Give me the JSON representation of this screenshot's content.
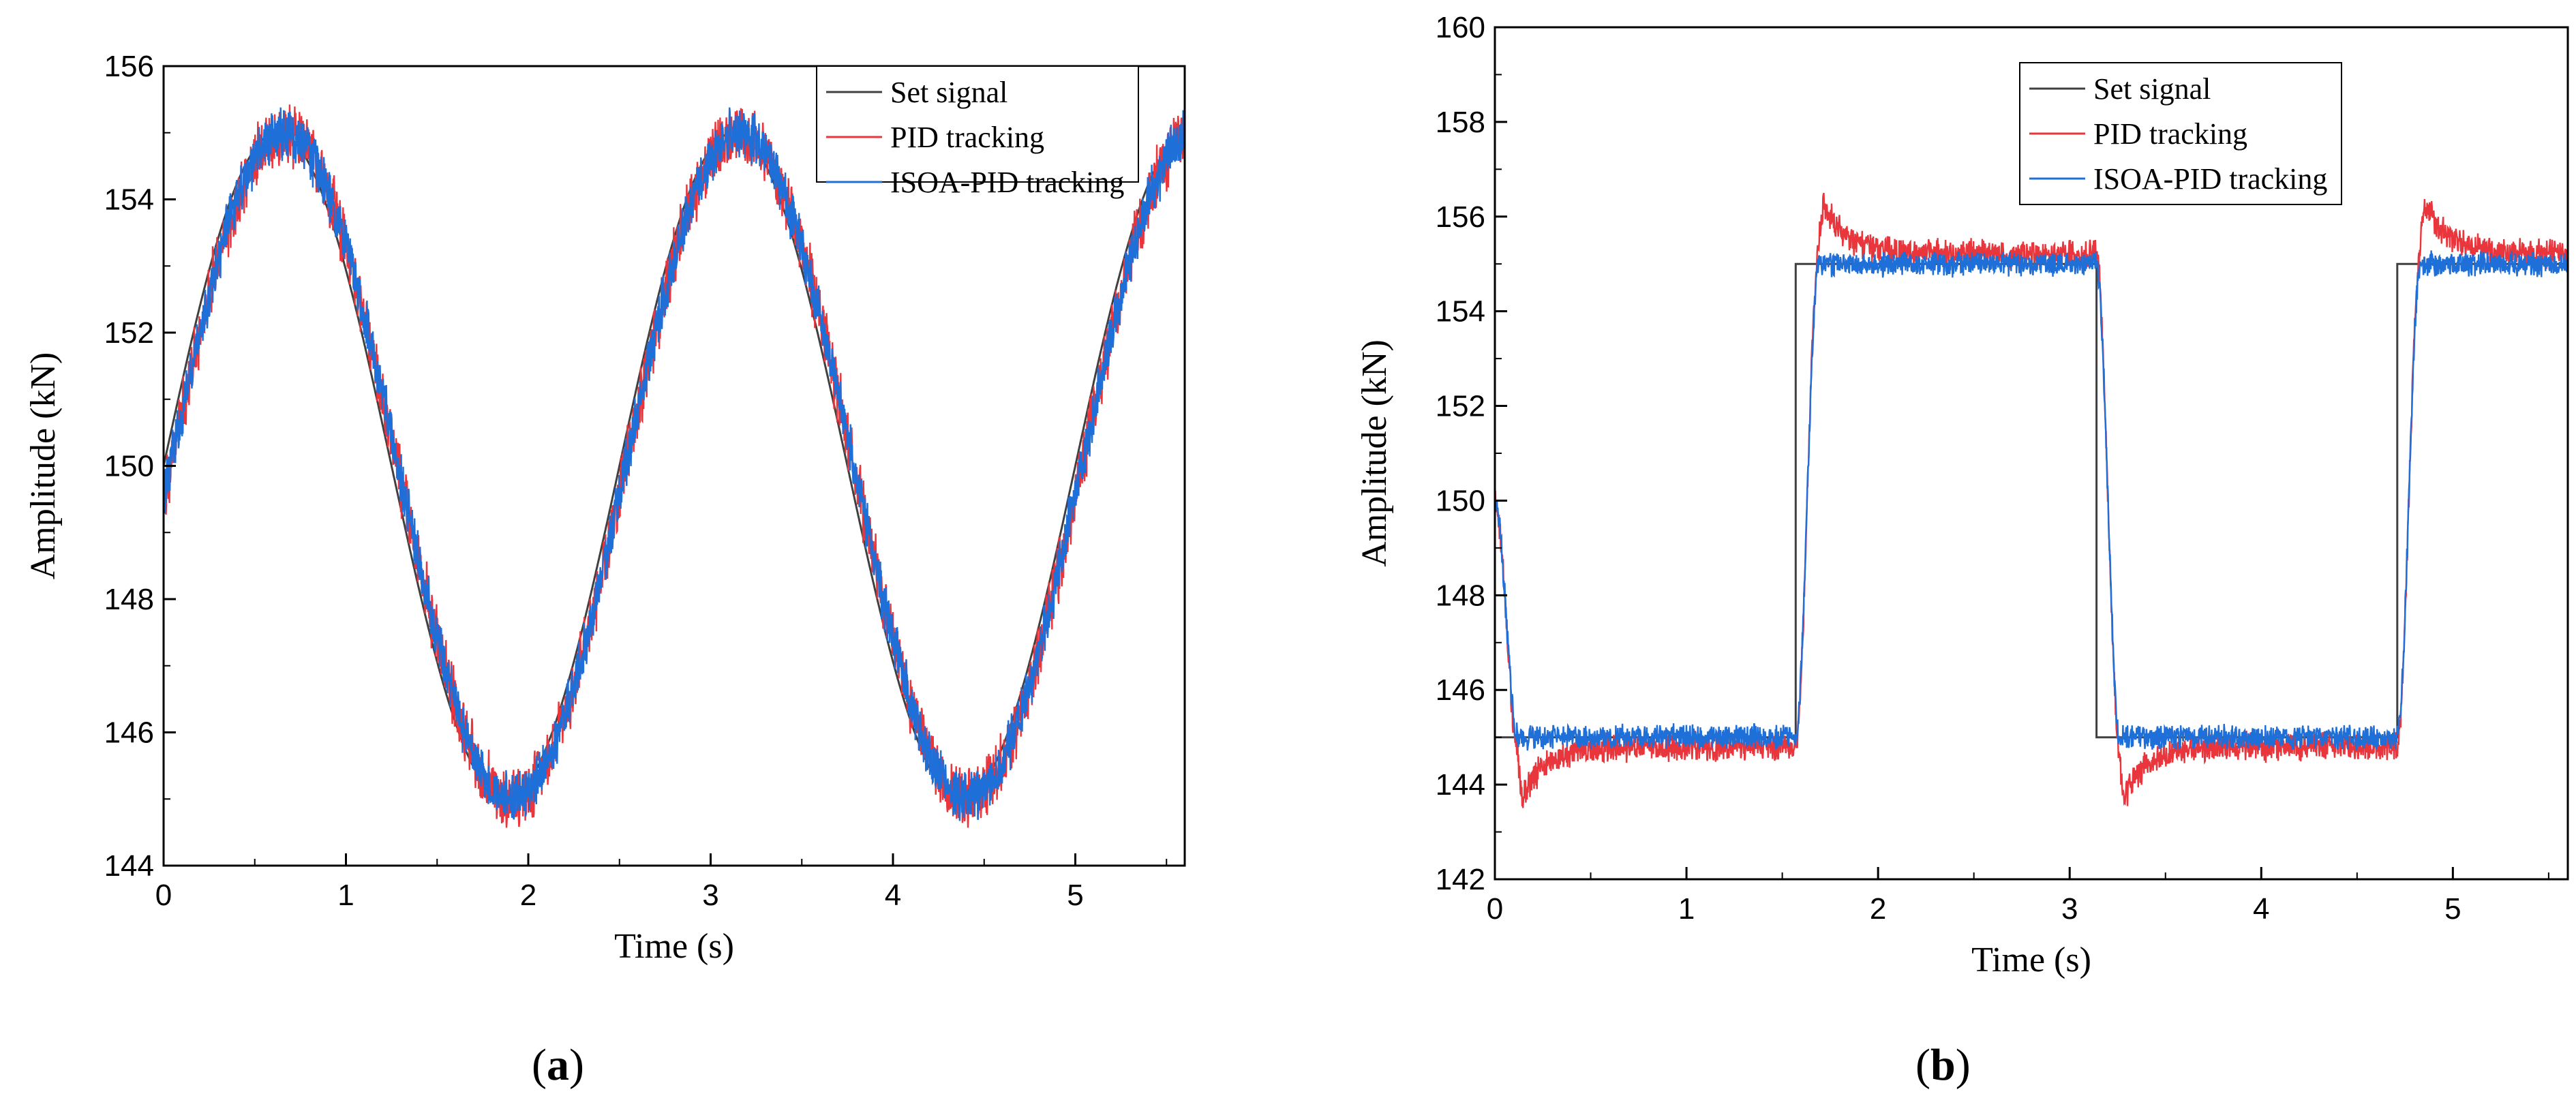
{
  "chart_data": [
    {
      "type": "line",
      "panel_label": "a",
      "title": "",
      "xlabel": "Time (s)",
      "ylabel": "Amplitude (kN)",
      "xlim": [
        0,
        5.6
      ],
      "ylim": [
        144,
        156
      ],
      "x_ticks": [
        0,
        1,
        2,
        3,
        4,
        5
      ],
      "y_ticks": [
        144,
        146,
        148,
        150,
        152,
        154,
        156
      ],
      "legend_position": "top-right",
      "series": [
        {
          "name": "Set signal",
          "color": "#404040",
          "model": {
            "kind": "sine",
            "offset": 150,
            "amplitude": 5,
            "period": 2.5,
            "phase_deg": 0
          },
          "noise": 0
        },
        {
          "name": "PID tracking",
          "color": "#e8363c",
          "model": {
            "kind": "sine",
            "offset": 150,
            "amplitude": 5,
            "period": 2.5,
            "phase_deg": -5
          },
          "noise": 0.55
        },
        {
          "name": "ISOA-PID tracking",
          "color": "#1f6fd8",
          "model": {
            "kind": "sine",
            "offset": 150,
            "amplitude": 5,
            "period": 2.5,
            "phase_deg": -5
          },
          "noise": 0.45
        }
      ]
    },
    {
      "type": "line",
      "panel_label": "b",
      "title": "",
      "xlabel": "Time (s)",
      "ylabel": "Amplitude (kN)",
      "xlim": [
        0,
        5.6
      ],
      "ylim": [
        142,
        160
      ],
      "x_ticks": [
        0,
        1,
        2,
        3,
        4,
        5
      ],
      "y_ticks": [
        142,
        144,
        146,
        148,
        150,
        152,
        154,
        156,
        158,
        160
      ],
      "legend_position": "top-center",
      "series": [
        {
          "name": "Set signal",
          "color": "#404040",
          "model": {
            "kind": "square",
            "low": 145,
            "high": 155,
            "start_value": 150,
            "edges": [
              0.0,
              1.57,
              3.14,
              4.71
            ],
            "start_level": "low"
          },
          "noise": 0
        },
        {
          "name": "PID tracking",
          "color": "#e8363c",
          "model": {
            "kind": "step_response",
            "low": 144.8,
            "high": 155.2,
            "start_value": 150,
            "edges": [
              0.0,
              1.57,
              3.14,
              4.71
            ],
            "start_level": "low",
            "rise_time": 0.12,
            "overshoot": 1.3,
            "settle_time": 0.12
          },
          "noise": 0.35
        },
        {
          "name": "ISOA-PID tracking",
          "color": "#1f6fd8",
          "model": {
            "kind": "step_response",
            "low": 145.0,
            "high": 155.0,
            "start_value": 150,
            "edges": [
              0.0,
              1.57,
              3.14,
              4.71
            ],
            "start_level": "low",
            "rise_time": 0.12,
            "overshoot": 0,
            "settle_time": 0.1
          },
          "noise": 0.3
        }
      ]
    }
  ],
  "captions": {
    "a": "a",
    "b": "b"
  }
}
